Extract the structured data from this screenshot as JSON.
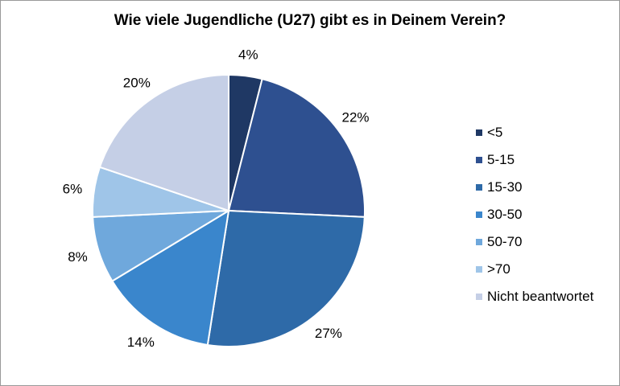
{
  "chart_data": {
    "type": "pie",
    "title": "Wie viele Jugendliche (U27) gibt es in Deinem Verein?",
    "categories": [
      "<5",
      "5-15",
      "15-30",
      "30-50",
      "50-70",
      ">70",
      "Nicht beantwortet"
    ],
    "values": [
      4,
      22,
      27,
      14,
      8,
      6,
      20
    ],
    "value_labels": [
      "4%",
      "22%",
      "27%",
      "14%",
      "8%",
      "6%",
      "20%"
    ],
    "colors": [
      "#1f3864",
      "#2e5090",
      "#2e6aa8",
      "#3a86cc",
      "#6fa8dc",
      "#9fc5e8",
      "#c5cfe6"
    ],
    "legend_position": "right",
    "start_angle": "12 o'clock",
    "direction": "clockwise"
  }
}
